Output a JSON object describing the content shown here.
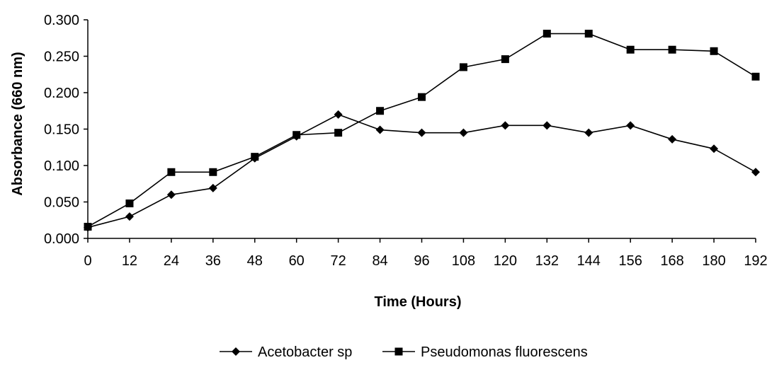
{
  "chart_data": {
    "type": "line",
    "title": "",
    "xlabel": "Time (Hours)",
    "ylabel": "Absorbance (660 nm)",
    "x": [
      0,
      12,
      24,
      36,
      48,
      60,
      72,
      84,
      96,
      108,
      120,
      132,
      144,
      156,
      168,
      180,
      192
    ],
    "x_tick_labels": [
      "0",
      "12",
      "24",
      "36",
      "48",
      "60",
      "72",
      "84",
      "96",
      "108",
      "120",
      "132",
      "144",
      "156",
      "168",
      "180",
      "192"
    ],
    "y_tick_labels": [
      "0.000",
      "0.050",
      "0.100",
      "0.150",
      "0.200",
      "0.250",
      "0.300"
    ],
    "ylim": [
      0,
      0.3
    ],
    "grid": false,
    "legend_position": "bottom",
    "series": [
      {
        "name": "Acetobacter sp",
        "marker": "diamond",
        "color": "#000000",
        "values": [
          0.015,
          0.03,
          0.06,
          0.069,
          0.11,
          0.14,
          0.17,
          0.149,
          0.145,
          0.145,
          0.155,
          0.155,
          0.145,
          0.155,
          0.136,
          0.123,
          0.091
        ]
      },
      {
        "name": "Pseudomonas fluorescens",
        "marker": "square",
        "color": "#000000",
        "values": [
          0.016,
          0.048,
          0.091,
          0.091,
          0.112,
          0.142,
          0.145,
          0.175,
          0.194,
          0.235,
          0.246,
          0.281,
          0.281,
          0.259,
          0.259,
          0.257,
          0.222
        ]
      }
    ]
  }
}
